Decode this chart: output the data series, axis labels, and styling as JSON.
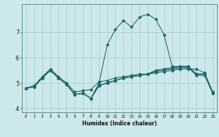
{
  "title": "",
  "xlabel": "Humidex (Indice chaleur)",
  "background_color": "#cce8e8",
  "grid_color": "#aad0d0",
  "line_color": "#1a6b6b",
  "x_values": [
    0,
    1,
    2,
    3,
    4,
    5,
    6,
    7,
    8,
    9,
    10,
    11,
    12,
    13,
    14,
    15,
    16,
    17,
    18,
    19,
    20,
    21,
    22,
    23
  ],
  "series1": [
    4.8,
    4.9,
    5.25,
    5.55,
    5.25,
    5.0,
    4.65,
    4.7,
    4.75,
    5.05,
    5.1,
    5.2,
    5.25,
    5.3,
    5.35,
    5.35,
    5.4,
    5.45,
    5.5,
    5.55,
    5.55,
    5.55,
    5.4,
    4.65
  ],
  "series2": [
    4.8,
    4.85,
    5.2,
    5.5,
    5.2,
    4.95,
    4.55,
    4.6,
    4.4,
    4.9,
    5.0,
    5.1,
    5.2,
    5.25,
    5.3,
    5.35,
    5.45,
    5.5,
    5.55,
    5.6,
    5.6,
    5.3,
    5.3,
    4.6
  ],
  "series3": [
    4.8,
    4.85,
    5.2,
    5.5,
    5.2,
    4.95,
    4.55,
    4.6,
    4.4,
    4.9,
    5.0,
    5.1,
    5.2,
    5.25,
    5.3,
    5.35,
    5.5,
    5.55,
    5.6,
    5.65,
    5.65,
    5.35,
    5.35,
    4.6
  ],
  "series4": [
    4.8,
    4.85,
    5.2,
    5.5,
    5.2,
    4.95,
    4.55,
    4.6,
    4.4,
    4.9,
    5.0,
    5.1,
    5.2,
    5.25,
    5.3,
    5.35,
    5.5,
    5.55,
    5.6,
    5.65,
    5.65,
    5.35,
    5.35,
    4.6
  ],
  "series_peak": [
    4.8,
    4.85,
    5.2,
    5.5,
    5.2,
    4.95,
    4.55,
    4.6,
    4.4,
    5.0,
    6.5,
    7.1,
    7.45,
    7.2,
    7.6,
    7.7,
    7.5,
    6.9,
    5.65,
    5.65,
    5.65,
    5.35,
    5.35,
    4.6
  ],
  "xlim": [
    -0.5,
    23.5
  ],
  "ylim": [
    3.85,
    8.1
  ],
  "yticks": [
    4,
    5,
    6,
    7
  ],
  "xticks": [
    0,
    1,
    2,
    3,
    4,
    5,
    6,
    7,
    8,
    9,
    10,
    11,
    12,
    13,
    14,
    15,
    16,
    17,
    18,
    19,
    20,
    21,
    22,
    23
  ]
}
